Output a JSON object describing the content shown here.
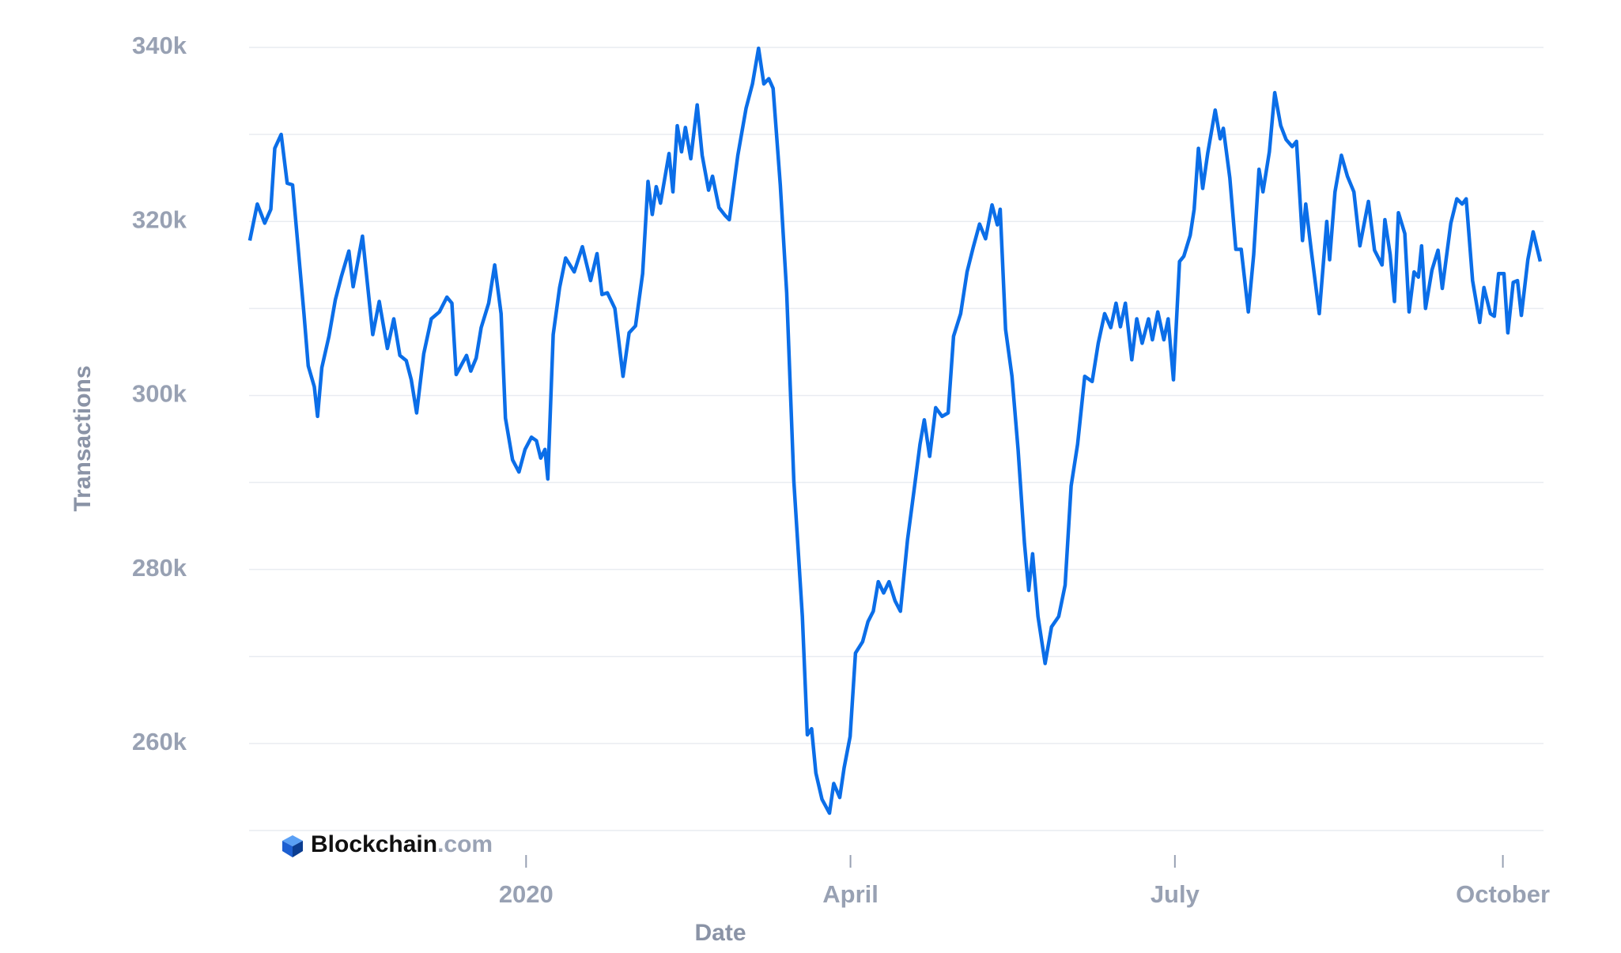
{
  "chart_data": {
    "type": "line",
    "y_label": "Transactions",
    "x_label": "Date",
    "watermark": {
      "name": "Blockchain",
      "suffix": ".com"
    },
    "xlim": [
      -77.7,
      285.4
    ],
    "xticks": [
      {
        "value": 0,
        "label": "2020"
      },
      {
        "value": 91,
        "label": "April"
      },
      {
        "value": 182,
        "label": "July"
      },
      {
        "value": 274,
        "label": "October"
      }
    ],
    "ylim": [
      250000,
      340000
    ],
    "yticks": [
      {
        "value": 260000,
        "label": "260k"
      },
      {
        "value": 280000,
        "label": "280k"
      },
      {
        "value": 300000,
        "label": "300k"
      },
      {
        "value": 320000,
        "label": "320k"
      },
      {
        "value": 340000,
        "label": "340k"
      }
    ],
    "ygrid": [
      250000,
      260000,
      270000,
      280000,
      290000,
      300000,
      310000,
      320000,
      330000,
      340000
    ],
    "series": [
      {
        "color": "#0b6ee8",
        "x": [
          -77.5,
          -75.4,
          -73.3,
          -71.6,
          -70.5,
          -68.7,
          -67,
          -65.5,
          -62.3,
          -61.1,
          -59.4,
          -58.5,
          -57.3,
          -55.3,
          -53.5,
          -51.8,
          -49.7,
          -48.5,
          -45.9,
          -43,
          -41.2,
          -38.9,
          -37.1,
          -35.4,
          -33.6,
          -32.2,
          -30.7,
          -28.7,
          -26.6,
          -24.3,
          -22.2,
          -20.8,
          -19.6,
          -16.7,
          -15.5,
          -14,
          -12.6,
          -10.5,
          -8.8,
          -7,
          -5.8,
          -3.8,
          -2,
          -0.3,
          1.5,
          2.9,
          4.1,
          5.3,
          6.1,
          7.6,
          9.4,
          11.1,
          13.5,
          15.8,
          18.1,
          19.9,
          21.3,
          22.8,
          24.9,
          27.2,
          28.9,
          30.7,
          32.7,
          34.2,
          35.4,
          36.5,
          37.7,
          40.1,
          41.2,
          42.4,
          43.6,
          44.7,
          46.2,
          48,
          49.4,
          51.2,
          52.3,
          54.1,
          55.8,
          57,
          59.4,
          61.7,
          63.5,
          65.2,
          66.7,
          68.1,
          69.3,
          71.3,
          73.1,
          75.1,
          77.5,
          78.9,
          80.1,
          81.3,
          83,
          85.1,
          86.3,
          88,
          89.2,
          90.9,
          92.4,
          94.4,
          95.9,
          97.4,
          98.8,
          100.3,
          101.8,
          103.5,
          105,
          107,
          108.8,
          110.5,
          111.7,
          113.2,
          114.9,
          116.7,
          118.4,
          119.9,
          121.9,
          123.7,
          125.4,
          127.2,
          128.9,
          130.7,
          132.2,
          133,
          134.5,
          136.3,
          138,
          139.8,
          141,
          142.1,
          143.6,
          145.6,
          147.4,
          149.4,
          151.2,
          152.9,
          154.7,
          156.7,
          158.8,
          160.5,
          162.3,
          164,
          165.5,
          166.7,
          168.1,
          169.9,
          171.3,
          172.8,
          174.6,
          175.7,
          177.2,
          178.9,
          180.1,
          181.6,
          183.3,
          184.5,
          186.3,
          187.4,
          188.6,
          189.8,
          191.2,
          193.3,
          194.7,
          195.6,
          197.4,
          199.1,
          200.6,
          202.6,
          204.1,
          205.6,
          206.7,
          208.5,
          210,
          211.7,
          213.2,
          214.9,
          216.1,
          217.8,
          218.7,
          220.2,
          222.5,
          224.6,
          225.4,
          226.9,
          228.7,
          230.4,
          232.2,
          233.9,
          236.3,
          238,
          240.1,
          240.9,
          242.4,
          243.6,
          244.7,
          246.5,
          247.7,
          249.1,
          250.3,
          251.2,
          252.3,
          254.1,
          255.8,
          257,
          259.4,
          261.1,
          262.6,
          263.7,
          265.5,
          267.5,
          268.7,
          270.5,
          271.6,
          272.8,
          274.3,
          275.4,
          276.9,
          278.1,
          279.2,
          281,
          282.5,
          284.5
        ],
        "values": [
          317800,
          322000,
          319800,
          321400,
          328400,
          330000,
          324400,
          324200,
          309400,
          303400,
          301000,
          297600,
          303200,
          306800,
          311000,
          313700,
          316600,
          312500,
          318300,
          307000,
          310800,
          305400,
          308800,
          304600,
          304000,
          301800,
          298000,
          304800,
          308800,
          309600,
          311300,
          310600,
          302400,
          304600,
          302800,
          304300,
          307800,
          310600,
          315000,
          309400,
          297400,
          292600,
          291200,
          293800,
          295200,
          294800,
          292800,
          293800,
          290400,
          307000,
          312400,
          315800,
          314200,
          317100,
          313200,
          316300,
          311600,
          311800,
          310000,
          302200,
          307200,
          308000,
          314000,
          324600,
          320800,
          324000,
          322100,
          327800,
          323400,
          331000,
          328000,
          330800,
          327200,
          333400,
          327600,
          323600,
          325200,
          321600,
          320700,
          320200,
          327600,
          333000,
          335800,
          339900,
          335800,
          336400,
          335300,
          324200,
          311800,
          290200,
          274600,
          261000,
          261700,
          256600,
          253600,
          252000,
          255400,
          253800,
          257200,
          260800,
          270400,
          271700,
          274000,
          275200,
          278600,
          277300,
          278600,
          276400,
          275200,
          283400,
          289000,
          294400,
          297200,
          293000,
          298600,
          297600,
          298000,
          306800,
          309400,
          314200,
          317000,
          319700,
          318000,
          321900,
          319600,
          321400,
          307600,
          302200,
          293800,
          283000,
          277600,
          281800,
          274600,
          269200,
          273400,
          274600,
          278200,
          289600,
          294400,
          302200,
          301600,
          306000,
          309400,
          307800,
          310600,
          307900,
          310600,
          304100,
          308800,
          306000,
          308800,
          306400,
          309600,
          306400,
          308800,
          301800,
          315400,
          316000,
          318400,
          321400,
          328400,
          323800,
          327800,
          332800,
          329500,
          330700,
          325000,
          316800,
          316800,
          309600,
          316200,
          326000,
          323400,
          328000,
          334800,
          331000,
          329400,
          328600,
          329200,
          317800,
          322000,
          316800,
          309400,
          320000,
          315600,
          323400,
          327600,
          325200,
          323400,
          317200,
          322300,
          316700,
          315000,
          320200,
          316200,
          310800,
          321000,
          318600,
          309600,
          314200,
          313600,
          317200,
          310000,
          314400,
          316700,
          312300,
          319800,
          322600,
          322000,
          322600,
          313200,
          308400,
          312400,
          309400,
          309100,
          314000,
          314000,
          307200,
          313000,
          313200,
          309200,
          315600,
          318800,
          315400
        ]
      }
    ]
  }
}
